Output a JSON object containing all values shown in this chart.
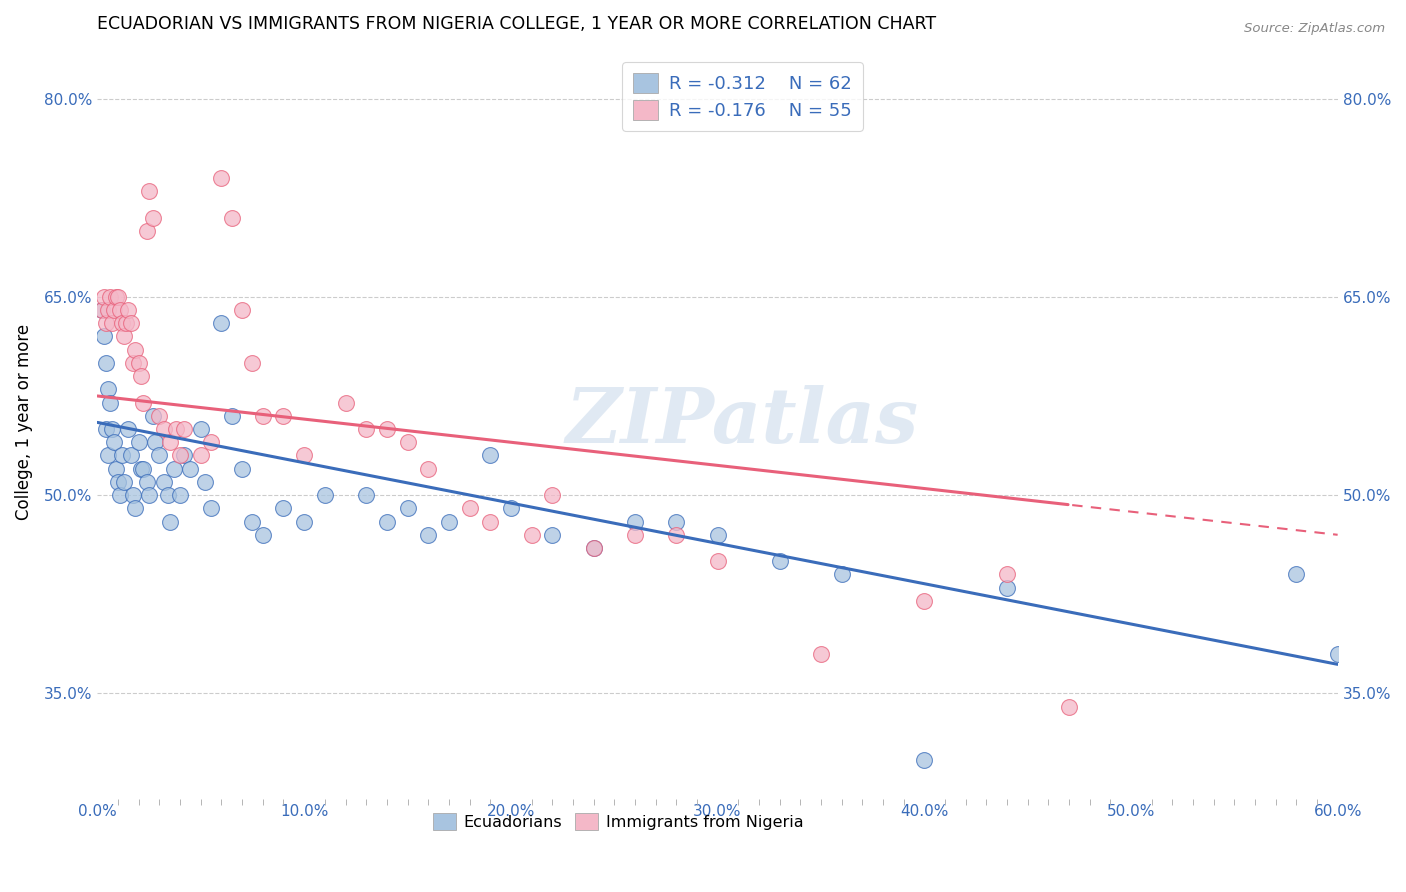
{
  "title": "ECUADORIAN VS IMMIGRANTS FROM NIGERIA COLLEGE, 1 YEAR OR MORE CORRELATION CHART",
  "source": "Source: ZipAtlas.com",
  "xlabel": "",
  "ylabel": "College, 1 year or more",
  "xlim": [
    0.0,
    0.6
  ],
  "ylim": [
    0.27,
    0.84
  ],
  "xtick_labels": [
    "0.0%",
    "",
    "",
    "",
    "",
    "",
    "",
    "",
    "",
    "",
    "10.0%",
    "",
    "",
    "",
    "",
    "",
    "",
    "",
    "",
    "",
    "20.0%",
    "",
    "",
    "",
    "",
    "",
    "",
    "",
    "",
    "",
    "30.0%",
    "",
    "",
    "",
    "",
    "",
    "",
    "",
    "",
    "",
    "40.0%",
    "",
    "",
    "",
    "",
    "",
    "",
    "",
    "",
    "",
    "50.0%",
    "",
    "",
    "",
    "",
    "",
    "",
    "",
    "",
    "",
    "60.0%"
  ],
  "xtick_vals": [
    0.0,
    0.01,
    0.02,
    0.03,
    0.04,
    0.05,
    0.06,
    0.07,
    0.08,
    0.09,
    0.1,
    0.11,
    0.12,
    0.13,
    0.14,
    0.15,
    0.16,
    0.17,
    0.18,
    0.19,
    0.2,
    0.21,
    0.22,
    0.23,
    0.24,
    0.25,
    0.26,
    0.27,
    0.28,
    0.29,
    0.3,
    0.31,
    0.32,
    0.33,
    0.34,
    0.35,
    0.36,
    0.37,
    0.38,
    0.39,
    0.4,
    0.41,
    0.42,
    0.43,
    0.44,
    0.45,
    0.46,
    0.47,
    0.48,
    0.49,
    0.5,
    0.51,
    0.52,
    0.53,
    0.54,
    0.55,
    0.56,
    0.57,
    0.58,
    0.59,
    0.6
  ],
  "xtick_major_labels": [
    "0.0%",
    "10.0%",
    "20.0%",
    "30.0%",
    "40.0%",
    "50.0%",
    "60.0%"
  ],
  "xtick_major_vals": [
    0.0,
    0.1,
    0.2,
    0.3,
    0.4,
    0.5,
    0.6
  ],
  "ytick_labels": [
    "35.0%",
    "50.0%",
    "65.0%",
    "80.0%"
  ],
  "ytick_vals": [
    0.35,
    0.5,
    0.65,
    0.8
  ],
  "ecuadorian_color": "#a8c4e0",
  "nigeria_color": "#f4b8c8",
  "ecuadorian_line_color": "#3a6cba",
  "nigeria_line_color": "#e8607a",
  "legend_label_blue": "Ecuadorians",
  "legend_label_pink": "Immigrants from Nigeria",
  "watermark_text": "ZIPatlas",
  "blue_intercept": 0.555,
  "blue_slope": -0.305,
  "pink_intercept": 0.575,
  "pink_slope": -0.175,
  "blue_x": [
    0.002,
    0.003,
    0.004,
    0.004,
    0.005,
    0.005,
    0.006,
    0.007,
    0.008,
    0.009,
    0.01,
    0.011,
    0.012,
    0.013,
    0.015,
    0.016,
    0.017,
    0.018,
    0.02,
    0.021,
    0.022,
    0.024,
    0.025,
    0.027,
    0.028,
    0.03,
    0.032,
    0.034,
    0.035,
    0.037,
    0.04,
    0.042,
    0.045,
    0.05,
    0.052,
    0.055,
    0.06,
    0.065,
    0.07,
    0.075,
    0.08,
    0.09,
    0.1,
    0.11,
    0.13,
    0.14,
    0.15,
    0.16,
    0.17,
    0.19,
    0.2,
    0.22,
    0.24,
    0.26,
    0.28,
    0.3,
    0.33,
    0.36,
    0.4,
    0.44,
    0.58,
    0.6
  ],
  "blue_y": [
    0.64,
    0.62,
    0.6,
    0.55,
    0.53,
    0.58,
    0.57,
    0.55,
    0.54,
    0.52,
    0.51,
    0.5,
    0.53,
    0.51,
    0.55,
    0.53,
    0.5,
    0.49,
    0.54,
    0.52,
    0.52,
    0.51,
    0.5,
    0.56,
    0.54,
    0.53,
    0.51,
    0.5,
    0.48,
    0.52,
    0.5,
    0.53,
    0.52,
    0.55,
    0.51,
    0.49,
    0.63,
    0.56,
    0.52,
    0.48,
    0.47,
    0.49,
    0.48,
    0.5,
    0.5,
    0.48,
    0.49,
    0.47,
    0.48,
    0.53,
    0.49,
    0.47,
    0.46,
    0.48,
    0.48,
    0.47,
    0.45,
    0.44,
    0.3,
    0.43,
    0.44,
    0.38
  ],
  "pink_x": [
    0.002,
    0.003,
    0.004,
    0.005,
    0.006,
    0.007,
    0.008,
    0.009,
    0.01,
    0.011,
    0.012,
    0.013,
    0.014,
    0.015,
    0.016,
    0.017,
    0.018,
    0.02,
    0.021,
    0.022,
    0.024,
    0.025,
    0.027,
    0.03,
    0.032,
    0.035,
    0.038,
    0.04,
    0.042,
    0.05,
    0.055,
    0.06,
    0.065,
    0.07,
    0.075,
    0.08,
    0.09,
    0.1,
    0.12,
    0.13,
    0.14,
    0.15,
    0.16,
    0.18,
    0.19,
    0.21,
    0.22,
    0.24,
    0.26,
    0.28,
    0.3,
    0.35,
    0.4,
    0.44,
    0.47
  ],
  "pink_y": [
    0.64,
    0.65,
    0.63,
    0.64,
    0.65,
    0.63,
    0.64,
    0.65,
    0.65,
    0.64,
    0.63,
    0.62,
    0.63,
    0.64,
    0.63,
    0.6,
    0.61,
    0.6,
    0.59,
    0.57,
    0.7,
    0.73,
    0.71,
    0.56,
    0.55,
    0.54,
    0.55,
    0.53,
    0.55,
    0.53,
    0.54,
    0.74,
    0.71,
    0.64,
    0.6,
    0.56,
    0.56,
    0.53,
    0.57,
    0.55,
    0.55,
    0.54,
    0.52,
    0.49,
    0.48,
    0.47,
    0.5,
    0.46,
    0.47,
    0.47,
    0.45,
    0.38,
    0.42,
    0.44,
    0.34
  ]
}
